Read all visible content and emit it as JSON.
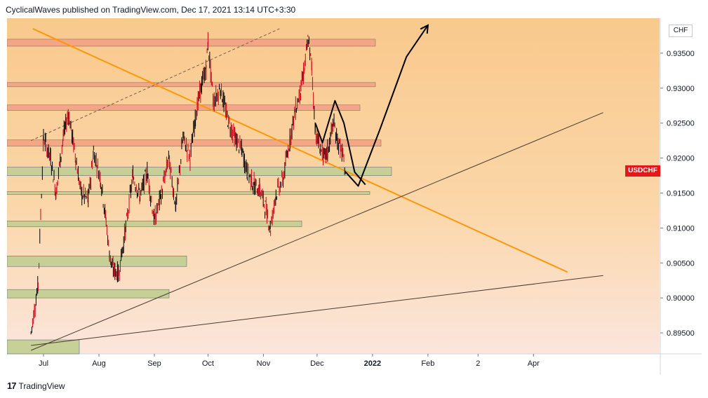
{
  "header": {
    "publisher": "CyclicalWaves published on TradingView.com, Dec 17, 2021 13:14 UTC+3:30"
  },
  "symbol": "USDCHF",
  "currency": "CHF",
  "footer": {
    "logo_text": "17",
    "brand": "TradingView"
  },
  "colors": {
    "bg_top": "#f9c98d",
    "bg_bottom": "#fbe3d3",
    "red_zone": "#f4a383",
    "green_zone": "#c4cf94",
    "orange_line": "#ff9800",
    "black_line": "#000000",
    "badge": "#e5171b"
  },
  "chart_data": {
    "type": "line",
    "title": "",
    "symbol": "USDCHF",
    "y_axis": {
      "ticks": [
        "0.93500",
        "0.93000",
        "0.92500",
        "0.92000",
        "0.91500",
        "0.91000",
        "0.90500",
        "0.90000",
        "0.89500"
      ],
      "range": [
        0.892,
        0.94
      ]
    },
    "x_axis": {
      "ticks": [
        "Jul",
        "Aug",
        "Sep",
        "Oct",
        "Nov",
        "Dec",
        "2022",
        "Feb",
        "2",
        "Apr"
      ]
    },
    "resistance_zones": [
      {
        "from": 0.936,
        "to": 0.937
      },
      {
        "from": 0.9302,
        "to": 0.9308
      },
      {
        "from": 0.9268,
        "to": 0.9276
      },
      {
        "from": 0.9217,
        "to": 0.9226
      }
    ],
    "support_zones": [
      {
        "from": 0.9175,
        "to": 0.9187
      },
      {
        "from": 0.9148,
        "to": 0.9152
      },
      {
        "from": 0.9102,
        "to": 0.911
      },
      {
        "from": 0.9045,
        "to": 0.906
      },
      {
        "from": 0.9,
        "to": 0.9012
      },
      {
        "from": 0.892,
        "to": 0.894
      }
    ],
    "price_path": [
      [
        "2021-06-24",
        0.895
      ],
      [
        "2021-06-28",
        0.902
      ],
      [
        "2021-07-01",
        0.923
      ],
      [
        "2021-07-05",
        0.92
      ],
      [
        "2021-07-08",
        0.915
      ],
      [
        "2021-07-12",
        0.923
      ],
      [
        "2021-07-15",
        0.9265
      ],
      [
        "2021-07-19",
        0.92
      ],
      [
        "2021-07-22",
        0.915
      ],
      [
        "2021-07-26",
        0.914
      ],
      [
        "2021-07-29",
        0.921
      ],
      [
        "2021-08-02",
        0.917
      ],
      [
        "2021-08-05",
        0.911
      ],
      [
        "2021-08-07",
        0.906
      ],
      [
        "2021-08-09",
        0.904
      ],
      [
        "2021-08-12",
        0.9035
      ],
      [
        "2021-08-16",
        0.91
      ],
      [
        "2021-08-20",
        0.9175
      ],
      [
        "2021-08-24",
        0.9145
      ],
      [
        "2021-08-28",
        0.918
      ],
      [
        "2021-09-01",
        0.911
      ],
      [
        "2021-09-05",
        0.915
      ],
      [
        "2021-09-09",
        0.92
      ],
      [
        "2021-09-13",
        0.913
      ],
      [
        "2021-09-17",
        0.923
      ],
      [
        "2021-09-21",
        0.92
      ],
      [
        "2021-09-24",
        0.926
      ],
      [
        "2021-09-27",
        0.93
      ],
      [
        "2021-09-30",
        0.933
      ],
      [
        "2021-10-01",
        0.9365
      ],
      [
        "2021-10-04",
        0.928
      ],
      [
        "2021-10-08",
        0.93
      ],
      [
        "2021-10-12",
        0.9255
      ],
      [
        "2021-10-16",
        0.923
      ],
      [
        "2021-10-20",
        0.921
      ],
      [
        "2021-10-23",
        0.918
      ],
      [
        "2021-10-27",
        0.916
      ],
      [
        "2021-10-30",
        0.9155
      ],
      [
        "2021-11-02",
        0.913
      ],
      [
        "2021-11-05",
        0.91
      ],
      [
        "2021-11-08",
        0.915
      ],
      [
        "2021-11-12",
        0.917
      ],
      [
        "2021-11-16",
        0.923
      ],
      [
        "2021-11-19",
        0.927
      ],
      [
        "2021-11-22",
        0.93
      ],
      [
        "2021-11-24",
        0.933
      ],
      [
        "2021-11-26",
        0.937
      ],
      [
        "2021-11-28",
        0.933
      ],
      [
        "2021-11-30",
        0.924
      ],
      [
        "2021-12-02",
        0.922
      ],
      [
        "2021-12-05",
        0.92
      ],
      [
        "2021-12-07",
        0.921
      ],
      [
        "2021-12-10",
        0.925
      ],
      [
        "2021-12-13",
        0.922
      ],
      [
        "2021-12-15",
        0.9205
      ],
      [
        "2021-12-17",
        0.918
      ]
    ],
    "projection": [
      [
        "2021-12-17",
        0.918
      ],
      [
        "2021-12-24",
        0.916
      ],
      [
        "2022-01-05",
        0.924
      ],
      [
        "2022-01-20",
        0.9345
      ],
      [
        "2022-02-01",
        0.939
      ]
    ],
    "pattern_lines": [
      [
        "2021-11-30",
        0.925
      ],
      [
        "2021-12-04",
        0.9222
      ],
      [
        "2021-12-11",
        0.9282
      ],
      [
        "2021-12-16",
        0.925
      ],
      [
        "2021-12-22",
        0.918
      ],
      [
        "2021-12-28",
        0.9162
      ]
    ],
    "trendlines": [
      {
        "style": "orange",
        "from": [
          "2021-06-25",
          0.9385
        ],
        "to": [
          "2022-04-20",
          0.9037
        ]
      },
      {
        "style": "thin-black",
        "from": [
          "2021-06-24",
          0.8925
        ],
        "to": [
          "2022-05-10",
          0.9265
        ]
      },
      {
        "style": "thin-black",
        "from": [
          "2021-06-24",
          0.8932
        ],
        "to": [
          "2022-05-10",
          0.9032
        ]
      },
      {
        "style": "dashed",
        "from": [
          "2021-06-24",
          0.9225
        ],
        "to": [
          "2021-11-10",
          0.9385
        ]
      }
    ]
  }
}
